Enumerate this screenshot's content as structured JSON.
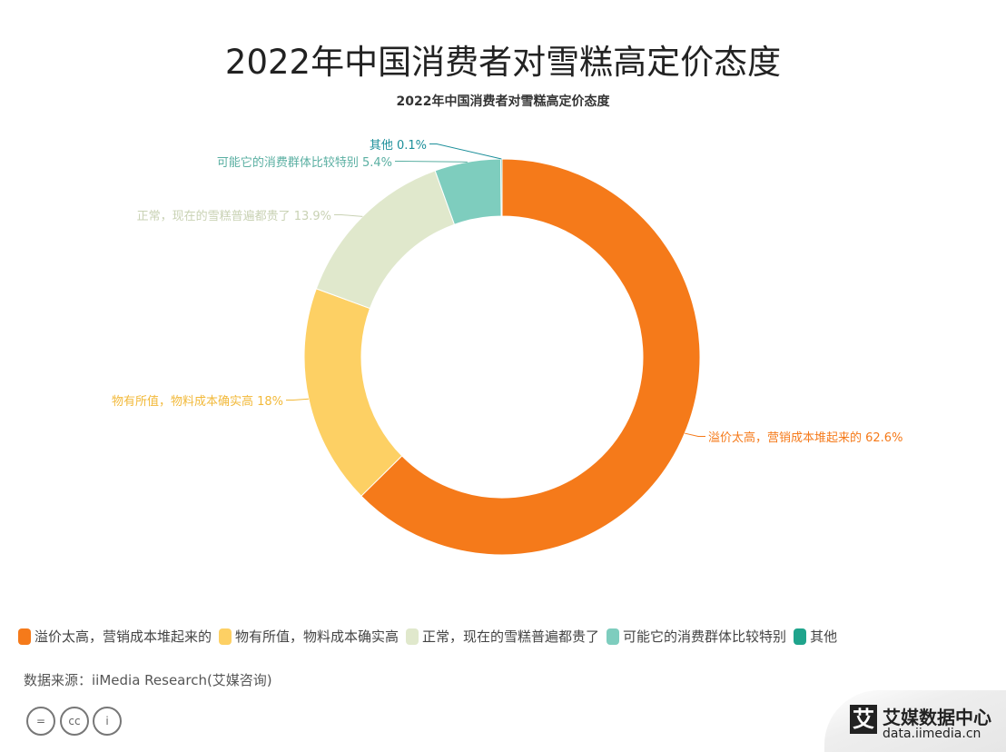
{
  "header": {
    "title": "2022年中国消费者对雪糕高定价态度"
  },
  "chart_data": {
    "type": "pie",
    "donut": true,
    "title": "2022年中国消费者对雪糕高定价态度",
    "categories": [
      "溢价太高，营销成本堆起来的",
      "物有所值，物料成本确实高",
      "正常，现在的雪糕普遍都贵了",
      "可能它的消费群体比较特别",
      "其他"
    ],
    "values": [
      62.6,
      18,
      13.9,
      5.4,
      0.1
    ],
    "labels": [
      "溢价太高，营销成本堆起来的 62.6%",
      "物有所值，物料成本确实高 18%",
      "正常，现在的雪糕普遍都贵了 13.9%",
      "可能它的消费群体比较特别 5.4%",
      "其他 0.1%"
    ],
    "colors": [
      "#F57A1A",
      "#FDD064",
      "#E0E8CC",
      "#7ECDBE",
      "#1FA48C"
    ],
    "label_colors": [
      "#F57A1A",
      "#F2B93A",
      "#C9D2B4",
      "#5AAFA2",
      "#1C8F9A"
    ],
    "legend_position": "bottom-left"
  },
  "footer": {
    "source": "数据来源：iiMedia Research(艾媒咨询)",
    "cc_icons": [
      "=",
      "cc",
      "i"
    ],
    "logo": {
      "mark": "艾",
      "name": "艾媒数据中心",
      "url": "data.iimedia.cn"
    }
  }
}
